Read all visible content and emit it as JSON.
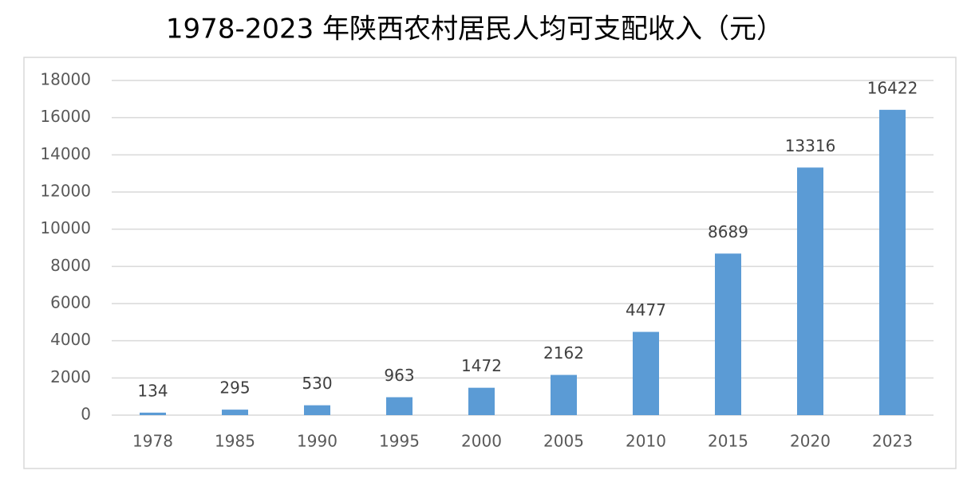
{
  "chart_data": {
    "type": "bar",
    "title": "1978-2023 年陕西农村居民人均可支配收入（元）",
    "categories": [
      "1978",
      "1985",
      "1990",
      "1995",
      "2000",
      "2005",
      "2010",
      "2015",
      "2020",
      "2023"
    ],
    "values": [
      134,
      295,
      530,
      963,
      1472,
      2162,
      4477,
      8689,
      13316,
      16422
    ],
    "color": "#5b9bd5",
    "ylim": [
      0,
      18000
    ],
    "yticks": [
      0,
      2000,
      4000,
      6000,
      8000,
      10000,
      12000,
      14000,
      16000,
      18000
    ],
    "grid": true
  }
}
